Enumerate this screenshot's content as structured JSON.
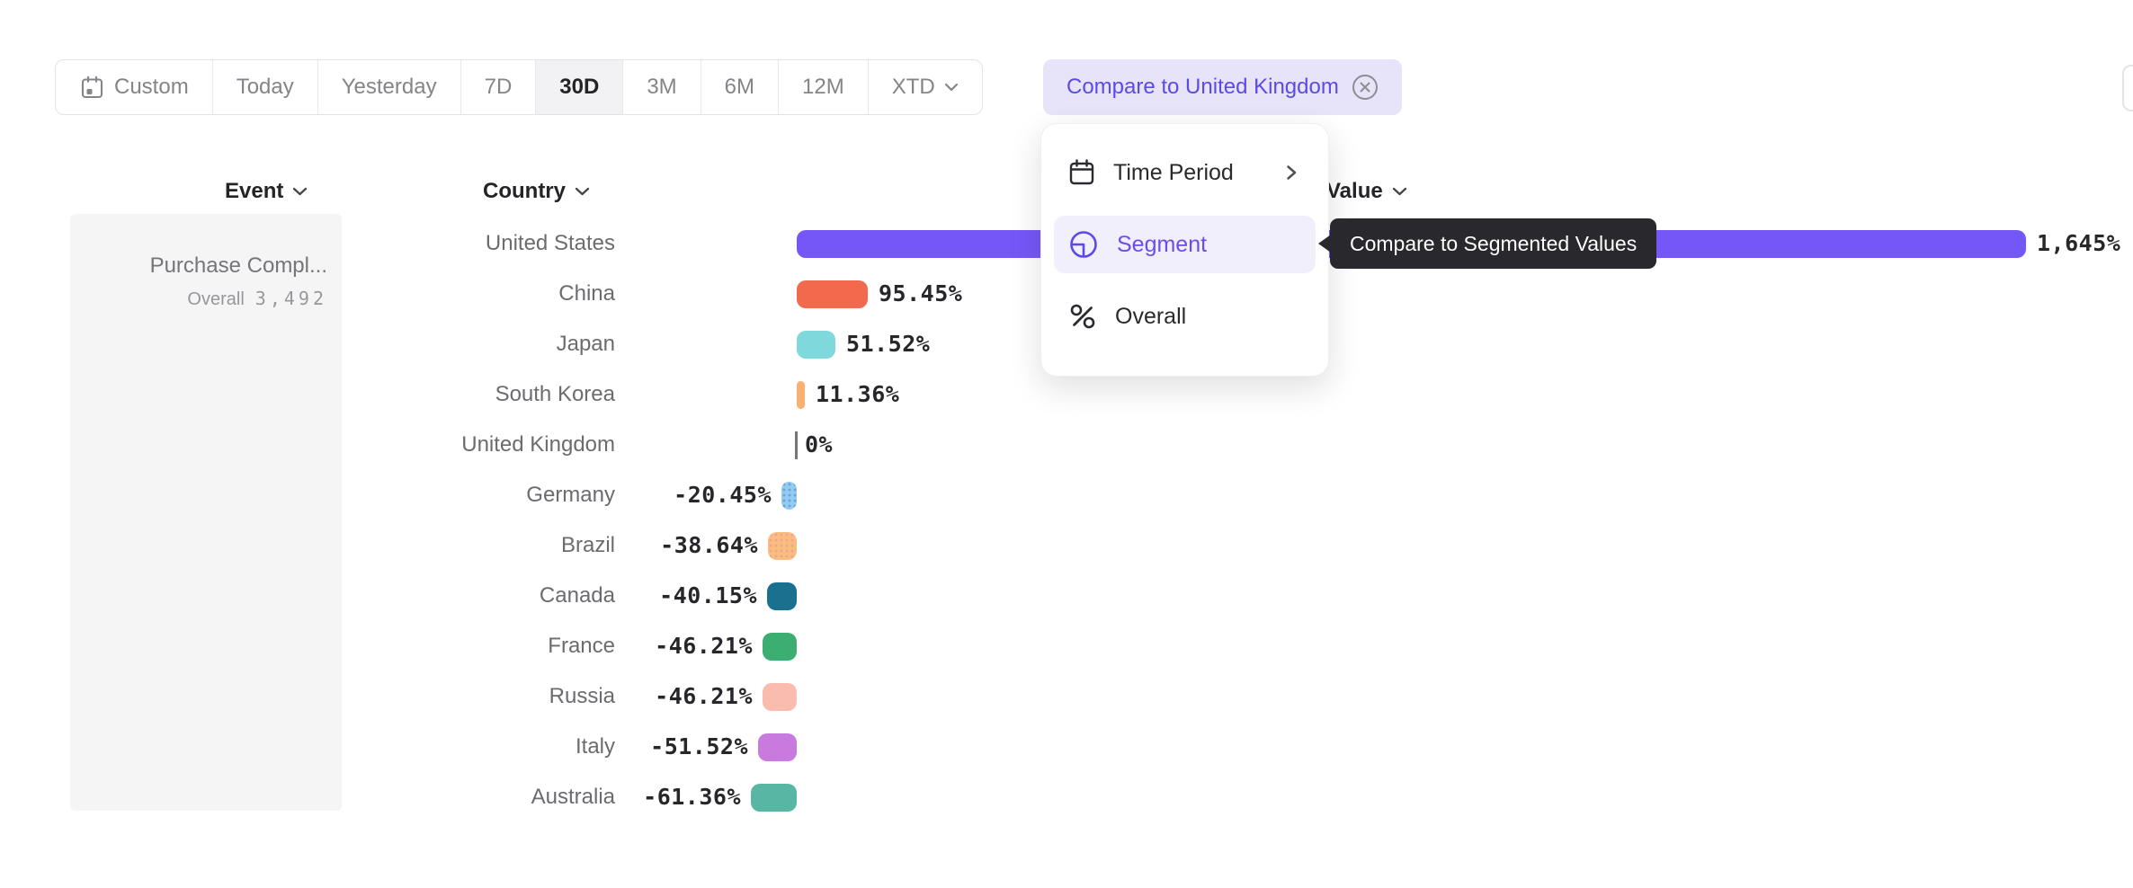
{
  "toolbar": {
    "segments": [
      {
        "label": "Custom",
        "icon": "calendar-icon"
      },
      {
        "label": "Today"
      },
      {
        "label": "Yesterday"
      },
      {
        "label": "7D"
      },
      {
        "label": "30D",
        "selected": true
      },
      {
        "label": "3M"
      },
      {
        "label": "6M"
      },
      {
        "label": "12M"
      },
      {
        "label": "XTD",
        "chevron": true
      }
    ],
    "compare_chip": {
      "label": "Compare to United Kingdom",
      "close_icon": "circle-x-icon"
    }
  },
  "columns": {
    "event": "Event",
    "country": "Country",
    "value": "Value"
  },
  "event_card": {
    "title": "Purchase Compl...",
    "overall_label": "Overall",
    "overall_value": "3,492"
  },
  "menu": {
    "items": [
      {
        "label": "Time Period",
        "icon": "calendar-icon",
        "has_submenu": true
      },
      {
        "label": "Segment",
        "icon": "segment-icon",
        "selected": true
      },
      {
        "label": "Overall",
        "icon": "percent-icon"
      }
    ]
  },
  "tooltip": {
    "text": "Compare to Segmented Values"
  },
  "colors": {
    "accent_purple": "#6C4CEC",
    "chip_bg": "#E7E4F9",
    "chip_text": "#5A4AE6",
    "tooltip_bg": "#29292D",
    "menu_highlight": "#F2EFFD"
  },
  "chart_data": {
    "type": "bar",
    "orientation": "horizontal",
    "value_format": "percent change vs baseline",
    "baseline": "United Kingdom",
    "rows": [
      {
        "country": "United States",
        "value": 1645,
        "label": "1,645%",
        "color": "#7557F8"
      },
      {
        "country": "China",
        "value": 95.45,
        "label": "95.45%",
        "color": "#F2694E"
      },
      {
        "country": "Japan",
        "value": 51.52,
        "label": "51.52%",
        "color": "#7FD8DB"
      },
      {
        "country": "South Korea",
        "value": 11.36,
        "label": "11.36%",
        "color": "#F8B171"
      },
      {
        "country": "United Kingdom",
        "value": 0,
        "label": "0%",
        "color": "#76767B"
      },
      {
        "country": "Germany",
        "value": -20.45,
        "label": "-20.45%",
        "color": "#8FCEF0",
        "dotted": true,
        "dot_color": "rgba(110,120,215,0.6)"
      },
      {
        "country": "Brazil",
        "value": -38.64,
        "label": "-38.64%",
        "color": "#F9BE7C",
        "dotted": true,
        "dot_color": "rgba(240,145,170,0.65)"
      },
      {
        "country": "Canada",
        "value": -40.15,
        "label": "-40.15%",
        "color": "#19718F"
      },
      {
        "country": "France",
        "value": -46.21,
        "label": "-46.21%",
        "color": "#3CAE72"
      },
      {
        "country": "Russia",
        "value": -46.21,
        "label": "-46.21%",
        "color": "#FBBCB0"
      },
      {
        "country": "Italy",
        "value": -51.52,
        "label": "-51.52%",
        "color": "#C87ADF"
      },
      {
        "country": "Australia",
        "value": -61.36,
        "label": "-61.36%",
        "color": "#58B7A4"
      }
    ]
  }
}
